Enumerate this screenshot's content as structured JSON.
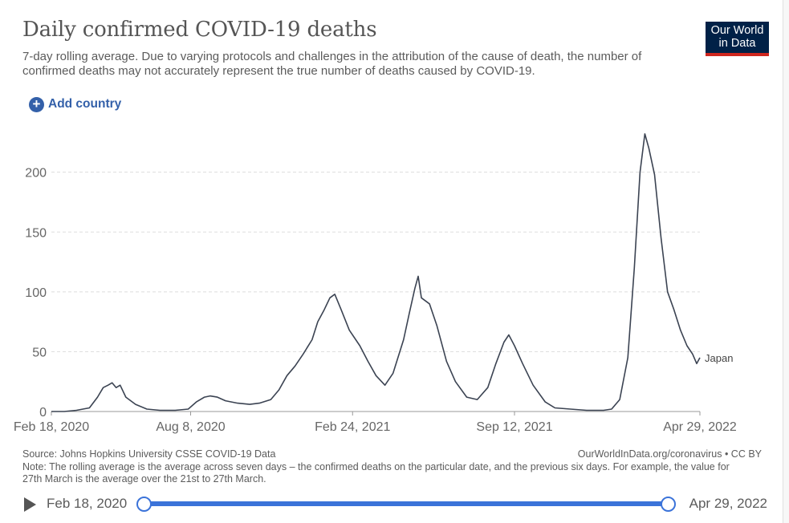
{
  "header": {
    "title": "Daily confirmed COVID-19 deaths",
    "subtitle": "7-day rolling average. Due to varying protocols and challenges in the attribution of the cause of death, the number of confirmed deaths may not accurately represent the true number of deaths caused by COVID-19.",
    "logo_line1": "Our World",
    "logo_line2": "in Data"
  },
  "controls": {
    "add_country_label": "Add country"
  },
  "chart_data": {
    "type": "line",
    "title": "Daily confirmed COVID-19 deaths",
    "xlabel": "",
    "ylabel": "",
    "ylim": [
      0,
      240
    ],
    "yticks": [
      0,
      50,
      100,
      150,
      200
    ],
    "xticks": [
      "Feb 18, 2020",
      "Aug 8, 2020",
      "Feb 24, 2021",
      "Sep 12, 2021",
      "Apr 29, 2022"
    ],
    "grid": true,
    "line_color": "#3b4352",
    "series": [
      {
        "name": "Japan",
        "points": [
          [
            "2020-02-18",
            0
          ],
          [
            "2020-03-05",
            0
          ],
          [
            "2020-03-20",
            1
          ],
          [
            "2020-04-05",
            3
          ],
          [
            "2020-04-15",
            12
          ],
          [
            "2020-04-22",
            20
          ],
          [
            "2020-04-28",
            22
          ],
          [
            "2020-05-03",
            24
          ],
          [
            "2020-05-08",
            20
          ],
          [
            "2020-05-13",
            22
          ],
          [
            "2020-05-20",
            12
          ],
          [
            "2020-06-01",
            6
          ],
          [
            "2020-06-15",
            2
          ],
          [
            "2020-07-01",
            1
          ],
          [
            "2020-07-20",
            1
          ],
          [
            "2020-08-05",
            2
          ],
          [
            "2020-08-15",
            8
          ],
          [
            "2020-08-25",
            12
          ],
          [
            "2020-09-01",
            13
          ],
          [
            "2020-09-10",
            12
          ],
          [
            "2020-09-20",
            9
          ],
          [
            "2020-10-05",
            7
          ],
          [
            "2020-10-20",
            6
          ],
          [
            "2020-11-01",
            7
          ],
          [
            "2020-11-15",
            10
          ],
          [
            "2020-11-25",
            18
          ],
          [
            "2020-12-05",
            30
          ],
          [
            "2020-12-15",
            38
          ],
          [
            "2020-12-25",
            48
          ],
          [
            "2021-01-05",
            60
          ],
          [
            "2021-01-12",
            75
          ],
          [
            "2021-01-20",
            85
          ],
          [
            "2021-01-27",
            95
          ],
          [
            "2021-02-02",
            98
          ],
          [
            "2021-02-10",
            85
          ],
          [
            "2021-02-20",
            68
          ],
          [
            "2021-03-05",
            55
          ],
          [
            "2021-03-15",
            42
          ],
          [
            "2021-03-25",
            30
          ],
          [
            "2021-04-05",
            22
          ],
          [
            "2021-04-15",
            32
          ],
          [
            "2021-04-28",
            60
          ],
          [
            "2021-05-05",
            82
          ],
          [
            "2021-05-12",
            103
          ],
          [
            "2021-05-16",
            113
          ],
          [
            "2021-05-20",
            95
          ],
          [
            "2021-05-30",
            90
          ],
          [
            "2021-06-08",
            72
          ],
          [
            "2021-06-20",
            42
          ],
          [
            "2021-07-01",
            25
          ],
          [
            "2021-07-15",
            12
          ],
          [
            "2021-07-28",
            10
          ],
          [
            "2021-08-10",
            20
          ],
          [
            "2021-08-20",
            40
          ],
          [
            "2021-08-30",
            58
          ],
          [
            "2021-09-05",
            64
          ],
          [
            "2021-09-12",
            55
          ],
          [
            "2021-09-22",
            40
          ],
          [
            "2021-10-05",
            22
          ],
          [
            "2021-10-20",
            8
          ],
          [
            "2021-11-01",
            3
          ],
          [
            "2021-11-20",
            2
          ],
          [
            "2021-12-10",
            1
          ],
          [
            "2021-12-31",
            1
          ],
          [
            "2022-01-10",
            2
          ],
          [
            "2022-01-20",
            10
          ],
          [
            "2022-01-30",
            45
          ],
          [
            "2022-02-07",
            120
          ],
          [
            "2022-02-14",
            200
          ],
          [
            "2022-02-20",
            232
          ],
          [
            "2022-02-25",
            220
          ],
          [
            "2022-03-04",
            198
          ],
          [
            "2022-03-12",
            145
          ],
          [
            "2022-03-20",
            100
          ],
          [
            "2022-03-28",
            85
          ],
          [
            "2022-04-05",
            68
          ],
          [
            "2022-04-13",
            55
          ],
          [
            "2022-04-20",
            48
          ],
          [
            "2022-04-25",
            40
          ],
          [
            "2022-04-29",
            45
          ]
        ]
      }
    ]
  },
  "footer": {
    "source": "Source: Johns Hopkins University CSSE COVID-19 Data",
    "url": "OurWorldInData.org/coronavirus • CC BY",
    "note": "Note: The rolling average is the average across seven days – the confirmed deaths on the particular date, and the previous six days. For example, the value for 27th March is the average over the 21st to 27th March."
  },
  "timeline": {
    "start_label": "Feb 18, 2020",
    "end_label": "Apr 29, 2022"
  }
}
